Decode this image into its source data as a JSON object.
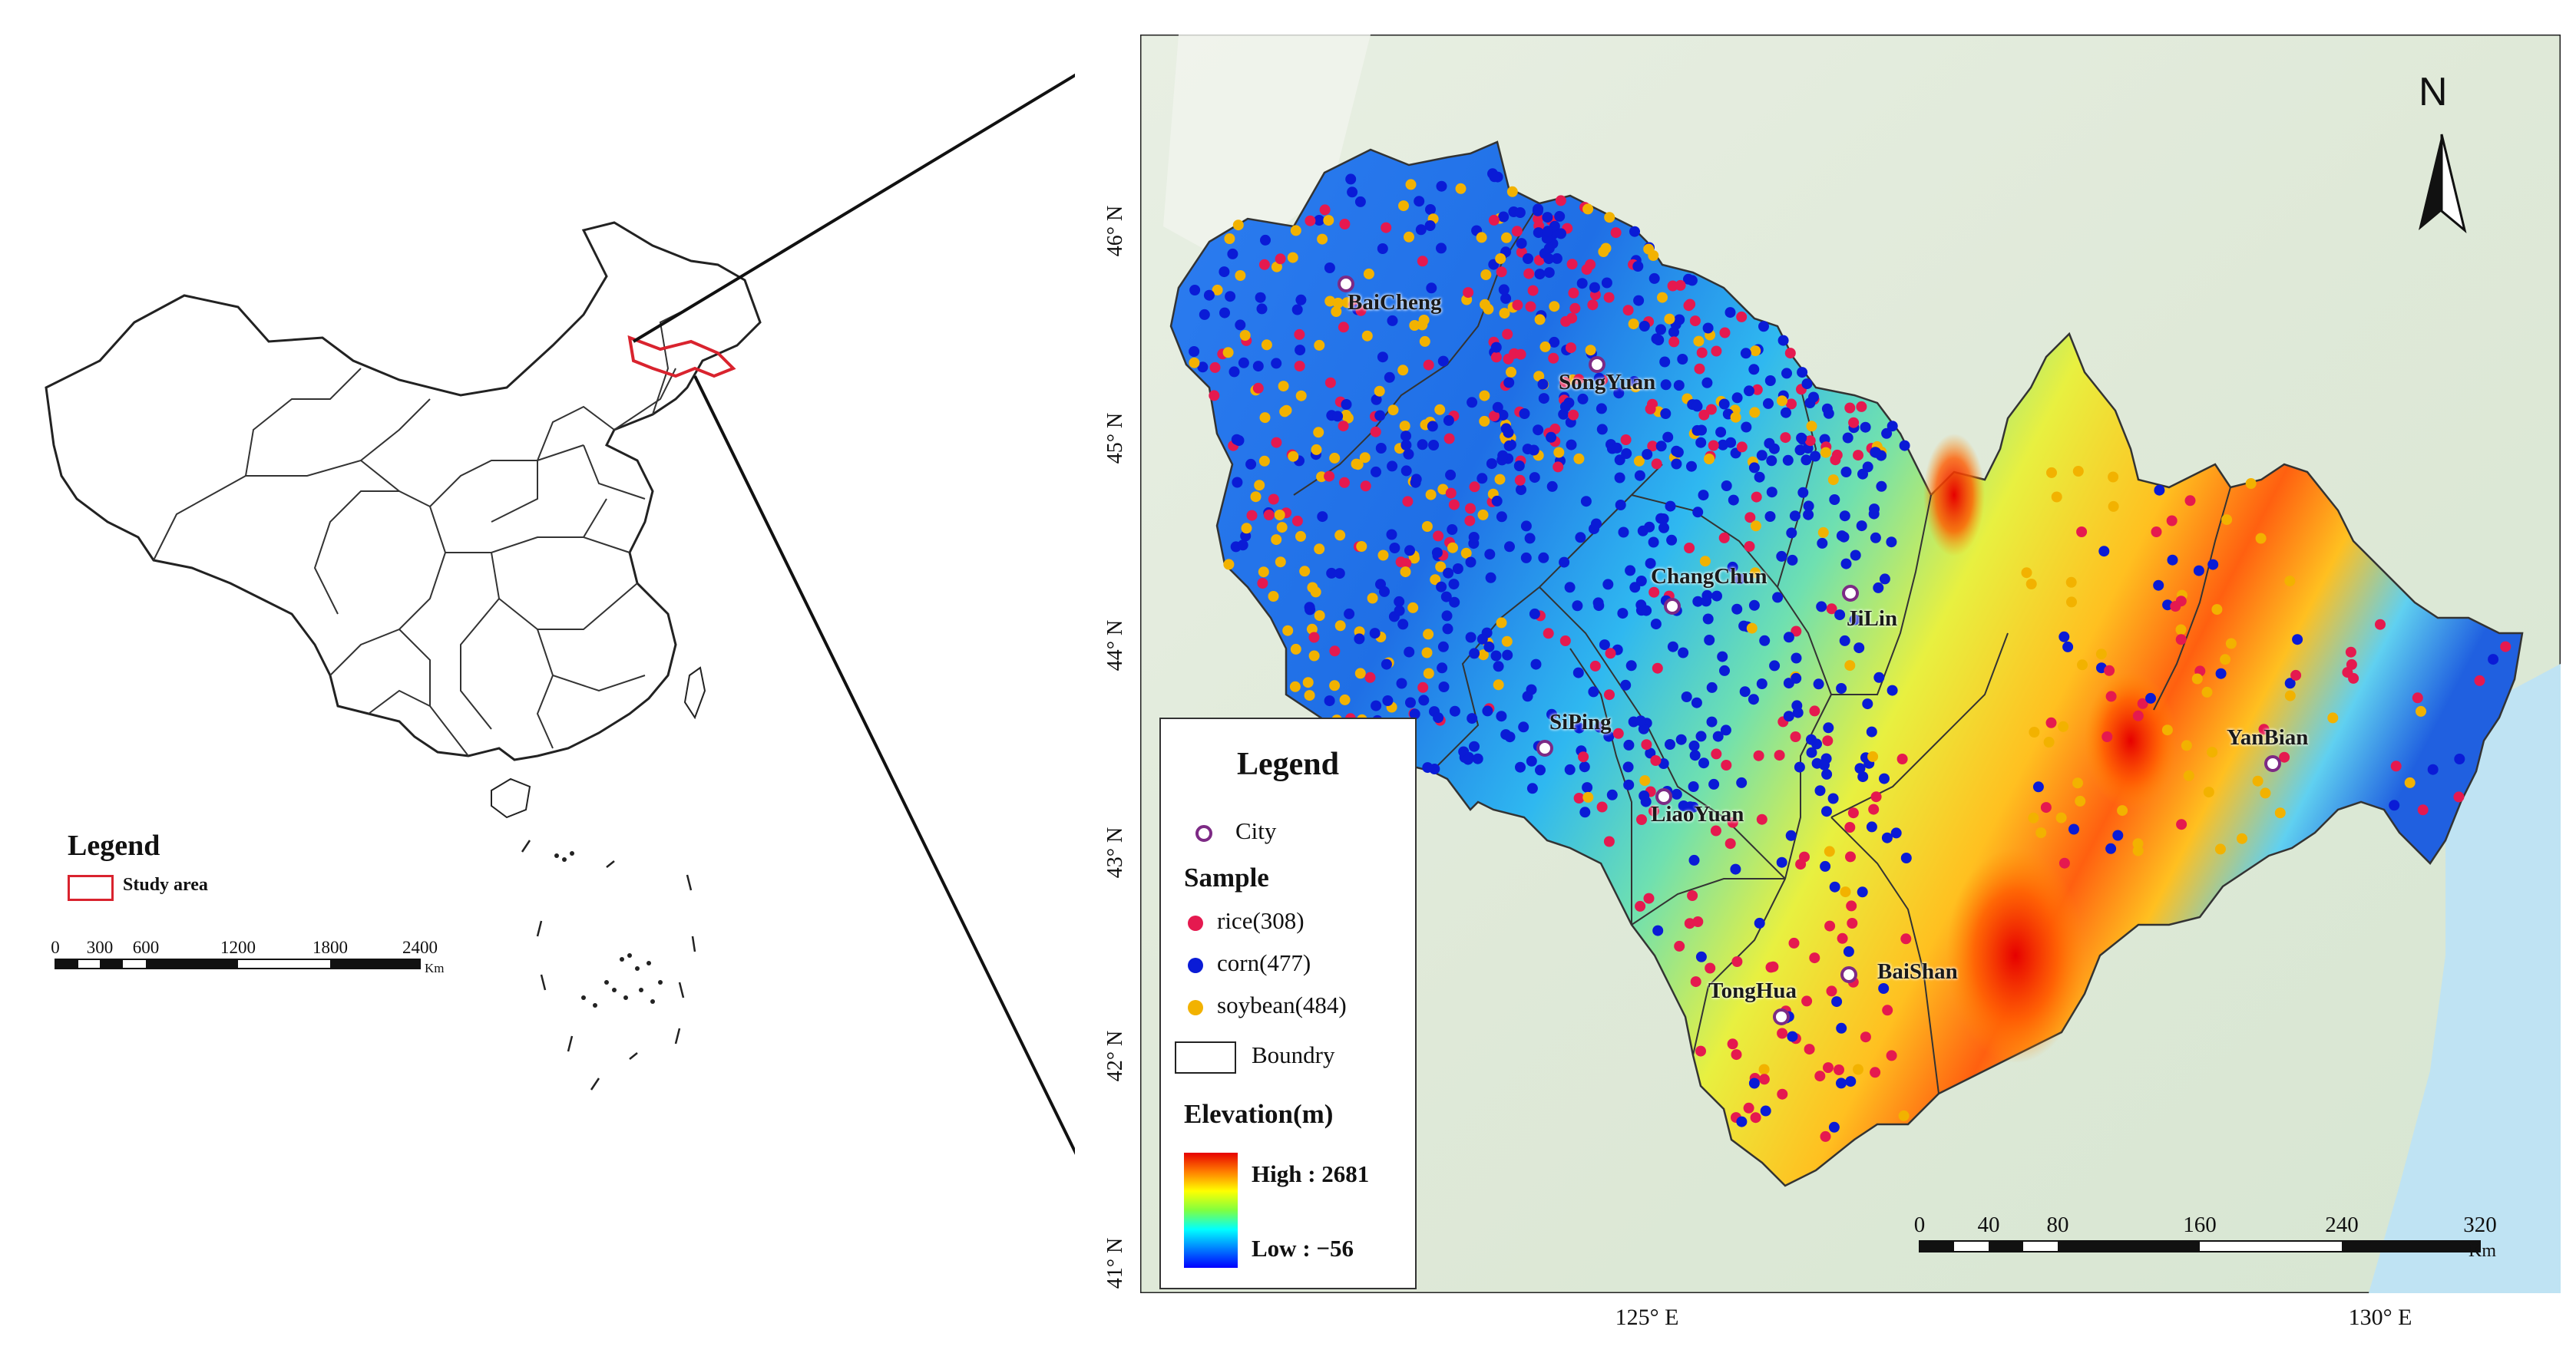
{
  "overview": {
    "legend_title": "Legend",
    "legend_item": "Study area",
    "scale_ticks": [
      "0",
      "300",
      "600",
      "1200",
      "1800",
      "2400"
    ],
    "scale_unit": "Km",
    "study_area_color": "#d9232e"
  },
  "main_map": {
    "lat_labels": [
      "46° N",
      "45° N",
      "44° N",
      "43° N",
      "42° N",
      "41° N"
    ],
    "lon_labels": [
      "125° E",
      "130° E"
    ],
    "north_arrow": "N",
    "cities": [
      "BaiCheng",
      "SongYuan",
      "ChangChun",
      "JiLin",
      "SiPing",
      "LiaoYuan",
      "YanBian",
      "TongHua",
      "BaiShan"
    ],
    "scale_ticks": [
      "0",
      "40",
      "80",
      "160",
      "240",
      "320"
    ],
    "scale_unit": "Km"
  },
  "legend": {
    "title": "Legend",
    "city": "City",
    "sample_heading": "Sample",
    "rice": "rice(308)",
    "corn": "corn(477)",
    "soybean": "soybean(484)",
    "boundary": "Boundry",
    "elevation_heading": "Elevation(m)",
    "high": "High : 2681",
    "low": "Low : −56"
  },
  "colors": {
    "rice": "#e5194f",
    "corn": "#0a1bd6",
    "soybean": "#f2b200",
    "city_marker": "#7d2a85"
  }
}
